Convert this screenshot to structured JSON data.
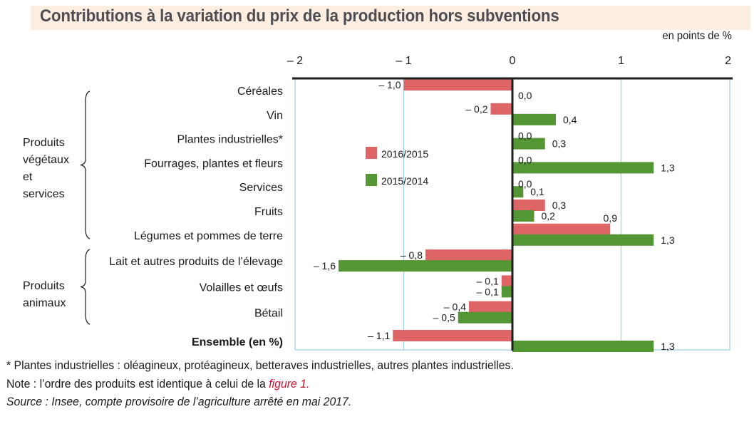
{
  "title": "Contributions à la variation du prix de la production hors subventions",
  "unit_label": "en points de %",
  "colors": {
    "series_2016_2015": "#dd6566",
    "series_2015_2014": "#549534",
    "gridline": "#9fcde3",
    "axis": "#1e1e1e",
    "title_band": "#fdeee2",
    "link": "#c8102e"
  },
  "groups": [
    {
      "label_lines": [
        "Produits",
        "végétaux",
        "et",
        "services"
      ],
      "first_category": 0,
      "last_category": 6
    },
    {
      "label_lines": [
        "Produits",
        "animaux"
      ],
      "first_category": 7,
      "last_category": 9
    }
  ],
  "footnotes": {
    "asterisk": "* Plantes industrielles : oléagineux, protéagineux, betteraves industrielles, autres plantes industrielles.",
    "note_prefix": "Note : l’ordre des produits est identique à celui de la ",
    "note_link": "figure 1.",
    "source": "Source : Insee, compte provisoire de l’agriculture arrêté en mai 2017."
  },
  "chart_data": {
    "type": "bar",
    "orientation": "horizontal",
    "title": "Contributions à la variation du prix de la production hors subventions",
    "xlabel": "en points de %",
    "ylabel": "",
    "xlim": [
      -2,
      2
    ],
    "xticks": [
      -2,
      -1,
      0,
      1,
      2
    ],
    "xtick_labels": [
      "– 2",
      "– 1",
      "0",
      "1",
      "2"
    ],
    "grid": true,
    "legend_position": "center-left inside plot",
    "categories": [
      "Céréales",
      "Vin",
      "Plantes industrielles*",
      "Fourrages, plantes et fleurs",
      "Services",
      "Fruits",
      "Légumes et pommes de terre",
      "Lait et autres produits de l’élevage",
      "Volailles et œufs",
      "Bétail",
      "Ensemble (en %)"
    ],
    "bold_categories": [
      10
    ],
    "series": [
      {
        "name": "2016/2015",
        "values": [
          -1.0,
          -0.2,
          0.0,
          0.0,
          0.0,
          0.3,
          0.9,
          -0.8,
          -0.1,
          -0.4,
          -1.1
        ],
        "labels": [
          "– 1,0",
          "– 0,2",
          "0,0",
          "0,0",
          "0,0",
          "0,3",
          "0,9",
          "– 0,8",
          "– 0,1",
          "– 0,4",
          "– 1,1"
        ]
      },
      {
        "name": "2015/2014",
        "values": [
          0.0,
          0.4,
          0.3,
          1.3,
          0.1,
          0.2,
          1.3,
          -1.6,
          -0.1,
          -0.5,
          1.3
        ],
        "labels": [
          "0,0",
          "0,4",
          "0,3",
          "1,3",
          "0,1",
          "0,2",
          "1,3",
          "– 1,6",
          "– 0,1",
          "– 0,5",
          "1,3"
        ]
      }
    ]
  }
}
